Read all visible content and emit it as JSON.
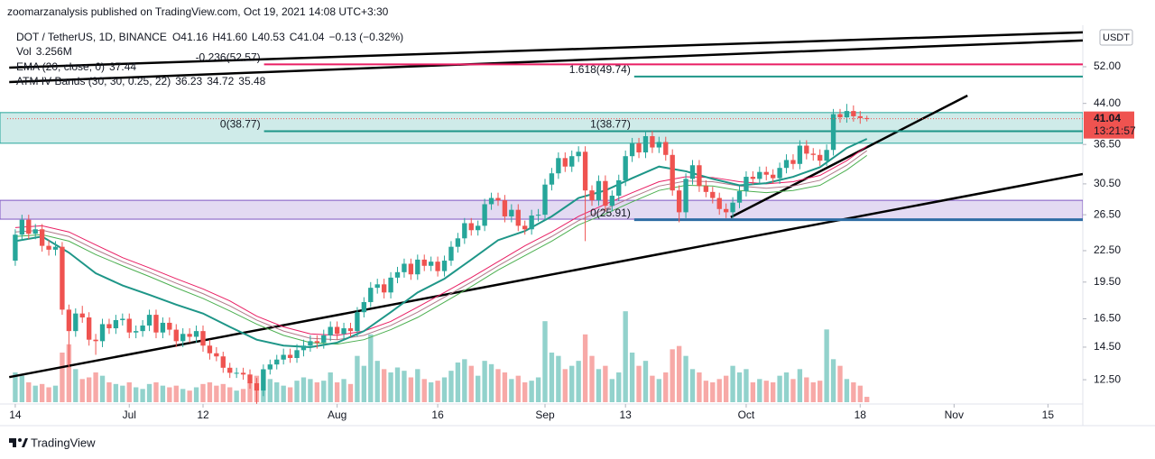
{
  "chart_data": {
    "type": "candlestick",
    "publisher": "zoomarzanalysis published on TradingView.com, Oct 19, 2021 14:08 UTC+3:30",
    "symbol": "DOT / TetherUS, 1D, BINANCE",
    "ohlc": [
      {
        "key": "O",
        "text": "41.16"
      },
      {
        "key": "H",
        "text": "41.60"
      },
      {
        "key": "L",
        "text": "40.53"
      },
      {
        "key": "C",
        "text": "41.04"
      },
      {
        "key": "",
        "text": "−0.13 (−0.32%)"
      }
    ],
    "currency": "USDT",
    "brand": "TradingView",
    "log_scale": true,
    "xlim": [
      -1.2,
      159.2
    ],
    "xticks": [
      {
        "value": 0,
        "label": "14"
      },
      {
        "value": 17,
        "label": "Jul"
      },
      {
        "value": 28,
        "label": "12"
      },
      {
        "value": 48,
        "label": "Aug"
      },
      {
        "value": 63,
        "label": "16"
      },
      {
        "value": 79,
        "label": "Sep"
      },
      {
        "value": 91,
        "label": "13"
      },
      {
        "value": 109,
        "label": "Oct"
      },
      {
        "value": 126,
        "label": "18"
      },
      {
        "value": 140,
        "label": "Nov"
      },
      {
        "value": 154,
        "label": "15"
      }
    ],
    "ylim": [
      11.1,
      62.3
    ],
    "yticks": [
      {
        "value": 12.5,
        "label": "12.50"
      },
      {
        "value": 14.5,
        "label": "14.50"
      },
      {
        "value": 16.5,
        "label": "16.50"
      },
      {
        "value": 19.5,
        "label": "19.50"
      },
      {
        "value": 22.5,
        "label": "22.50"
      },
      {
        "value": 26.5,
        "label": "26.50"
      },
      {
        "value": 30.5,
        "label": "30.50"
      },
      {
        "value": 36.5,
        "label": "36.50"
      },
      {
        "value": 44,
        "label": "44.00"
      },
      {
        "value": 52,
        "label": "52.00"
      }
    ],
    "up_color": "#26a69a",
    "down_color": "#ef5350",
    "open": [
      21.5,
      24.2,
      25.9,
      24.3,
      24.8,
      23.0,
      22.6,
      22.9,
      17.2,
      15.6,
      16.9,
      16.6,
      15.0,
      14.9,
      16.1,
      15.8,
      16.4,
      16.5,
      15.5,
      15.6,
      16.0,
      16.8,
      15.5,
      16.2,
      15.7,
      14.9,
      15.4,
      15.2,
      15.6,
      14.6,
      14.1,
      13.9,
      13.2,
      12.9,
      12.9,
      12.8,
      12.3,
      11.9,
      13.1,
      13.4,
      13.7,
      14.0,
      13.8,
      14.3,
      14.6,
      14.9,
      14.8,
      15.3,
      15.9,
      15.4,
      15.8,
      15.6,
      17.0,
      17.8,
      19.0,
      19.3,
      18.6,
      19.9,
      20.4,
      21.2,
      20.2,
      21.6,
      21.0,
      21.4,
      20.5,
      21.5,
      22.9,
      23.8,
      25.5,
      24.7,
      25.2,
      27.8,
      28.6,
      28.3,
      26.3,
      27.1,
      25.2,
      24.8,
      26.4,
      26.5,
      30.4,
      32.0,
      34.3,
      33.0,
      34.6,
      35.3,
      29.6,
      28.3,
      30.9,
      27.6,
      28.9,
      31.0,
      34.6,
      36.7,
      35.2,
      37.9,
      36.0,
      36.9,
      34.8,
      29.6,
      26.8,
      31.2,
      33.2,
      30.2,
      29.4,
      28.6,
      27.2,
      26.8,
      28.0,
      29.5,
      31.5,
      31.2,
      32.2,
      31.8,
      31.3,
      32.8,
      34.0,
      33.4,
      36.3,
      35.0,
      34.8,
      33.9,
      35.6,
      41.9,
      41.3,
      42.5,
      41.5,
      41.16
    ],
    "high": [
      24.8,
      26.5,
      26.5,
      25.4,
      25.4,
      23.6,
      23.5,
      23.4,
      17.6,
      17.3,
      17.5,
      17.0,
      15.4,
      16.5,
      16.5,
      16.8,
      16.9,
      16.9,
      16.0,
      16.4,
      17.2,
      17.2,
      16.6,
      16.6,
      16.1,
      15.8,
      15.8,
      16.0,
      16.0,
      15.0,
      14.5,
      14.2,
      13.5,
      13.2,
      13.2,
      13.1,
      12.6,
      13.4,
      13.7,
      14.0,
      14.4,
      14.4,
      14.7,
      15.0,
      15.3,
      15.3,
      15.7,
      16.3,
      16.3,
      16.2,
      16.2,
      17.4,
      18.2,
      19.5,
      19.8,
      19.8,
      20.4,
      20.9,
      21.7,
      21.7,
      22.1,
      22.1,
      21.9,
      21.9,
      22.0,
      23.5,
      24.4,
      26.1,
      26.1,
      25.8,
      28.5,
      29.3,
      29.3,
      29.0,
      27.8,
      27.8,
      25.8,
      27.1,
      27.2,
      31.2,
      32.8,
      35.2,
      35.2,
      35.5,
      36.2,
      36.2,
      30.3,
      31.7,
      31.7,
      29.6,
      31.8,
      35.5,
      37.6,
      37.6,
      38.8,
      38.8,
      37.8,
      37.8,
      35.7,
      30.3,
      32.0,
      34.0,
      34.0,
      31.0,
      30.1,
      29.3,
      27.9,
      28.7,
      30.2,
      32.3,
      32.3,
      33.0,
      33.0,
      32.6,
      33.6,
      34.9,
      34.9,
      37.2,
      37.2,
      35.9,
      35.7,
      36.5,
      42.9,
      42.9,
      43.9,
      43.6,
      42.5,
      41.6
    ],
    "low": [
      21.0,
      23.6,
      23.7,
      23.7,
      22.4,
      22.0,
      22.0,
      16.8,
      13.2,
      15.2,
      16.2,
      14.6,
      14.0,
      14.5,
      15.4,
      15.4,
      16.0,
      15.1,
      15.1,
      15.2,
      15.6,
      15.1,
      15.1,
      15.3,
      14.5,
      14.5,
      14.8,
      14.8,
      14.2,
      13.7,
      13.6,
      12.9,
      12.6,
      12.6,
      12.5,
      12.0,
      11.2,
      11.6,
      12.8,
      13.1,
      13.4,
      13.5,
      13.5,
      13.9,
      14.2,
      14.4,
      14.4,
      14.9,
      15.0,
      15.0,
      15.2,
      15.2,
      16.6,
      17.4,
      18.5,
      18.1,
      18.1,
      19.4,
      19.9,
      19.7,
      19.7,
      20.5,
      20.5,
      20.0,
      20.0,
      21.0,
      22.3,
      23.2,
      24.1,
      24.1,
      24.6,
      27.1,
      27.6,
      25.6,
      25.6,
      24.6,
      24.2,
      24.2,
      25.7,
      25.8,
      29.6,
      31.2,
      32.2,
      32.2,
      33.7,
      23.5,
      27.6,
      27.6,
      26.9,
      26.9,
      28.2,
      30.2,
      33.7,
      34.3,
      34.3,
      35.1,
      35.1,
      33.9,
      28.9,
      25.6,
      26.1,
      30.4,
      29.4,
      28.7,
      27.9,
      26.5,
      26.1,
      26.1,
      27.3,
      28.8,
      30.4,
      30.4,
      31.0,
      30.5,
      30.5,
      32.0,
      32.6,
      32.6,
      34.1,
      33.9,
      33.1,
      33.1,
      34.7,
      40.3,
      40.3,
      40.5,
      40.1,
      40.53
    ],
    "close": [
      24.2,
      25.9,
      24.3,
      24.8,
      23.0,
      22.6,
      22.9,
      17.2,
      15.6,
      16.9,
      16.6,
      15.0,
      14.9,
      16.1,
      15.8,
      16.4,
      16.5,
      15.5,
      15.6,
      16.0,
      16.8,
      15.5,
      16.2,
      15.7,
      14.9,
      15.4,
      15.2,
      15.6,
      14.6,
      14.1,
      13.9,
      13.2,
      12.9,
      12.9,
      12.8,
      12.3,
      11.9,
      13.1,
      13.4,
      13.7,
      14.0,
      13.8,
      14.3,
      14.6,
      14.9,
      14.8,
      15.3,
      15.9,
      15.4,
      15.8,
      15.6,
      17.0,
      17.8,
      19.0,
      19.3,
      18.6,
      19.9,
      20.4,
      21.2,
      20.2,
      21.6,
      21.0,
      21.4,
      20.5,
      21.5,
      22.9,
      23.8,
      25.5,
      24.7,
      25.2,
      27.8,
      28.6,
      28.3,
      26.3,
      27.1,
      25.2,
      24.8,
      26.4,
      26.5,
      30.4,
      32.0,
      34.3,
      33.0,
      34.6,
      35.3,
      29.6,
      28.3,
      30.9,
      27.6,
      28.9,
      31.0,
      34.6,
      36.7,
      35.2,
      37.9,
      36.0,
      36.9,
      34.8,
      29.6,
      26.8,
      31.2,
      33.2,
      30.2,
      29.4,
      28.6,
      27.2,
      26.8,
      28.0,
      29.5,
      31.5,
      31.2,
      32.2,
      31.8,
      31.3,
      32.8,
      34.0,
      33.4,
      36.3,
      35.0,
      34.8,
      33.9,
      35.6,
      41.9,
      41.3,
      42.5,
      41.5,
      41.16,
      41.04
    ],
    "volume": {
      "label": "Vol",
      "value_label": "3.256M",
      "values": [
        18,
        16,
        12,
        10,
        11,
        9,
        10,
        30,
        35,
        20,
        14,
        15,
        18,
        16,
        12,
        11,
        10,
        12,
        9,
        8,
        11,
        12,
        10,
        9,
        10,
        8,
        7,
        9,
        11,
        12,
        10,
        11,
        9,
        7,
        8,
        12,
        16,
        20,
        14,
        12,
        10,
        9,
        13,
        15,
        14,
        12,
        13,
        18,
        12,
        14,
        11,
        28,
        22,
        41,
        25,
        20,
        18,
        21,
        19,
        15,
        20,
        14,
        12,
        13,
        15,
        19,
        24,
        26,
        22,
        16,
        25,
        23,
        20,
        18,
        14,
        16,
        12,
        13,
        15,
        49,
        30,
        28,
        20,
        22,
        25,
        41,
        28,
        20,
        22,
        14,
        18,
        55,
        30,
        22,
        25,
        16,
        14,
        18,
        32,
        34,
        28,
        20,
        18,
        13,
        12,
        14,
        16,
        22,
        18,
        20,
        12,
        14,
        13,
        12,
        16,
        18,
        14,
        20,
        15,
        12,
        13,
        44,
        26,
        22,
        14,
        12,
        10,
        3.256
      ]
    },
    "indicator_x": [
      0,
      4,
      8,
      12,
      16,
      20,
      24,
      28,
      32,
      36,
      40,
      44,
      48,
      52,
      56,
      60,
      64,
      68,
      72,
      76,
      80,
      84,
      88,
      92,
      96,
      100,
      104,
      108,
      112,
      116,
      120,
      124,
      127
    ],
    "ema": {
      "label": "EMA (20, close, 0)",
      "value_label": "37.44",
      "color": "#1e9688",
      "values": [
        23.5,
        24.0,
        22.3,
        20.3,
        19.2,
        18.4,
        17.6,
        16.9,
        15.9,
        15.0,
        14.6,
        14.5,
        14.8,
        15.6,
        17.0,
        18.6,
        19.8,
        21.6,
        23.6,
        24.6,
        26.3,
        28.6,
        29.6,
        31.3,
        33.0,
        32.3,
        31.2,
        30.3,
        30.6,
        31.5,
        32.9,
        35.9,
        37.44
      ]
    },
    "bands": {
      "label": "ATM IV Bands (30, 30, 0.25, 22)",
      "series": [
        {
          "value_label": "36.23",
          "color": "#e91e63",
          "values": [
            25.0,
            25.2,
            24.5,
            23.1,
            21.8,
            20.8,
            19.8,
            18.9,
            17.9,
            16.7,
            15.9,
            15.4,
            15.3,
            15.6,
            16.3,
            17.4,
            18.6,
            19.9,
            21.4,
            23.0,
            24.5,
            26.3,
            27.8,
            29.3,
            30.8,
            31.5,
            31.4,
            30.8,
            30.5,
            30.8,
            31.7,
            33.9,
            36.23
          ]
        },
        {
          "value_label": "34.72",
          "color": "#4caf50",
          "values": [
            24.0,
            24.2,
            23.5,
            22.1,
            21.0,
            20.0,
            19.0,
            18.1,
            17.1,
            16.1,
            15.3,
            14.8,
            14.7,
            15.0,
            15.7,
            16.6,
            17.8,
            19.1,
            20.6,
            22.0,
            23.5,
            25.3,
            26.6,
            28.1,
            29.6,
            30.3,
            30.2,
            29.6,
            29.3,
            29.6,
            30.3,
            32.5,
            34.72
          ]
        },
        {
          "value_label": "35.48",
          "color": "#b07a8a",
          "values": [
            24.5,
            24.7,
            24.0,
            22.6,
            21.4,
            20.4,
            19.4,
            18.5,
            17.5,
            16.4,
            15.6,
            15.1,
            15.0,
            15.3,
            16.0,
            17.0,
            18.2,
            19.5,
            21.0,
            22.5,
            24.0,
            25.8,
            27.2,
            28.7,
            30.2,
            30.9,
            30.8,
            30.2,
            29.9,
            30.2,
            31.0,
            33.2,
            35.48
          ]
        }
      ]
    },
    "zones": [
      {
        "range": [
          36.7,
          42.2
        ],
        "color": "#26a69a"
      },
      {
        "range": [
          25.97,
          28.3
        ],
        "color": "#7e57c2"
      }
    ],
    "trendlines": [
      {
        "x": [
          -0.9,
          159.2
        ],
        "y": [
          51.8,
          60.8
        ]
      },
      {
        "x": [
          -0.9,
          159.2
        ],
        "y": [
          48.5,
          58.6
        ]
      },
      {
        "x": [
          -0.9,
          159.2
        ],
        "y": [
          12.65,
          31.9
        ]
      },
      {
        "x": [
          106.7,
          142
        ],
        "y": [
          26.2,
          45.6
        ]
      }
    ],
    "fib_levels": [
      {
        "label": "-0.236(52.57)",
        "value": 52.57,
        "from": 37.1,
        "color": "#e91e63"
      },
      {
        "label": "1.618(49.74)",
        "value": 49.74,
        "from": 92.3,
        "color": "#1e9688"
      },
      {
        "label": "0(38.77)",
        "value": 38.77,
        "from": 37.1,
        "color": "#1e9688"
      },
      {
        "label": "1(38.77)",
        "value": 38.77,
        "from": 92.3,
        "color": "#1e9688"
      },
      {
        "label": "0(25.91)",
        "value": 25.91,
        "from": 92.3,
        "color": "#2e6da4"
      }
    ],
    "last_price": {
      "value": 41.04,
      "label": "41.04",
      "countdown": "13:21:57"
    }
  }
}
